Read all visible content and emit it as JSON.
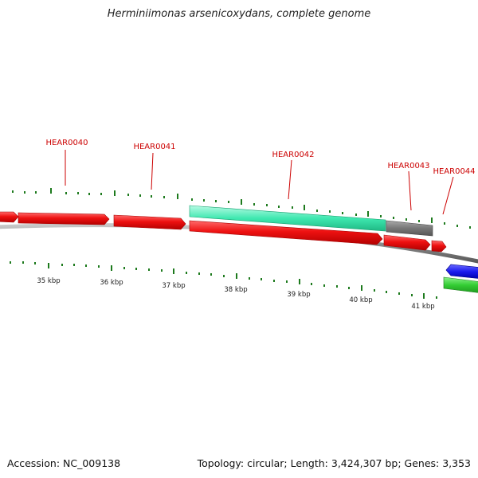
{
  "title": "Herminiimonas arsenicoxydans, complete genome",
  "footer": {
    "accession": "Accession: NC_009138",
    "summary": "Topology: circular; Length: 3,424,307 bp; Genes: 3,353"
  },
  "scale_labels": [
    "35 kbp",
    "36 kbp",
    "37 kbp",
    "38 kbp",
    "39 kbp",
    "40 kbp",
    "41 kbp"
  ],
  "gene_labels": [
    "HEAR0040",
    "HEAR0041",
    "HEAR0042",
    "HEAR0043",
    "HEAR0044"
  ],
  "colors": {
    "backbone": "#8c8c8c",
    "forward_gene": "#ee1111",
    "highlight_gene": "#3fe8b0",
    "other_gene": "#777777",
    "blue_gene": "#1a1aee",
    "green_gene": "#33cc33",
    "tick": "#1d7a1d",
    "label": "#cc0000"
  }
}
